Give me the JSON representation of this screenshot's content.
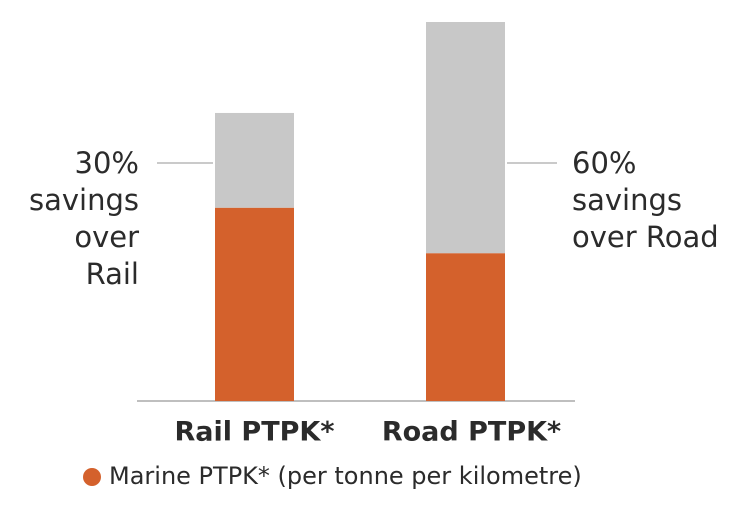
{
  "chart_data": {
    "type": "stacked_bar",
    "categories": [
      "Rail PTPK*",
      "Road PTPK*"
    ],
    "series": [
      {
        "name": "Marine PTPK* (per tonne per kilometre)",
        "color": "#d4612c",
        "values": [
          51,
          39
        ]
      },
      {
        "color": "#c8c8c8",
        "values": [
          25,
          61
        ]
      }
    ],
    "ylim": [
      0,
      100
    ],
    "annotations": [
      {
        "lines": [
          "30%",
          "savings",
          "over",
          "Rail"
        ]
      },
      {
        "lines": [
          "60%",
          "savings",
          "over Road"
        ]
      }
    ]
  }
}
